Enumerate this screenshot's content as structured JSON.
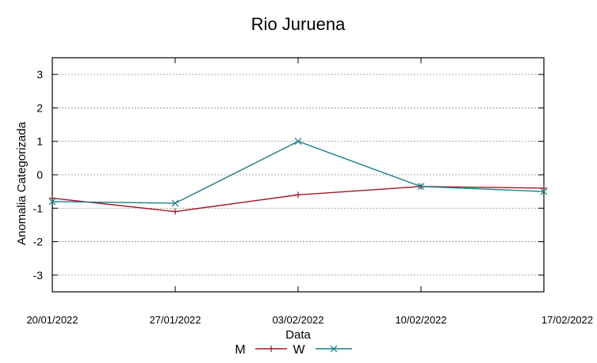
{
  "chart_data": {
    "type": "line",
    "title": "Rio Juruena",
    "xlabel": "Data",
    "ylabel": "Anomalia Categorizada",
    "categories": [
      "20/01/2022",
      "27/01/2022",
      "03/02/2022",
      "10/02/2022",
      "17/02/2022"
    ],
    "yticks": [
      "3",
      "2",
      "1",
      "0",
      "-1",
      "-2",
      "-3"
    ],
    "ylim": [
      -3.5,
      3.5
    ],
    "grid": true,
    "legend_position": "bottom",
    "series": [
      {
        "name": "M",
        "color": "#a0182a",
        "marker": "plus",
        "values": [
          -0.7,
          -1.1,
          -0.6,
          -0.35,
          -0.4
        ]
      },
      {
        "name": "W",
        "color": "#1a7f86",
        "marker": "x",
        "values": [
          -0.8,
          -0.85,
          1.0,
          -0.35,
          -0.5
        ]
      }
    ]
  }
}
